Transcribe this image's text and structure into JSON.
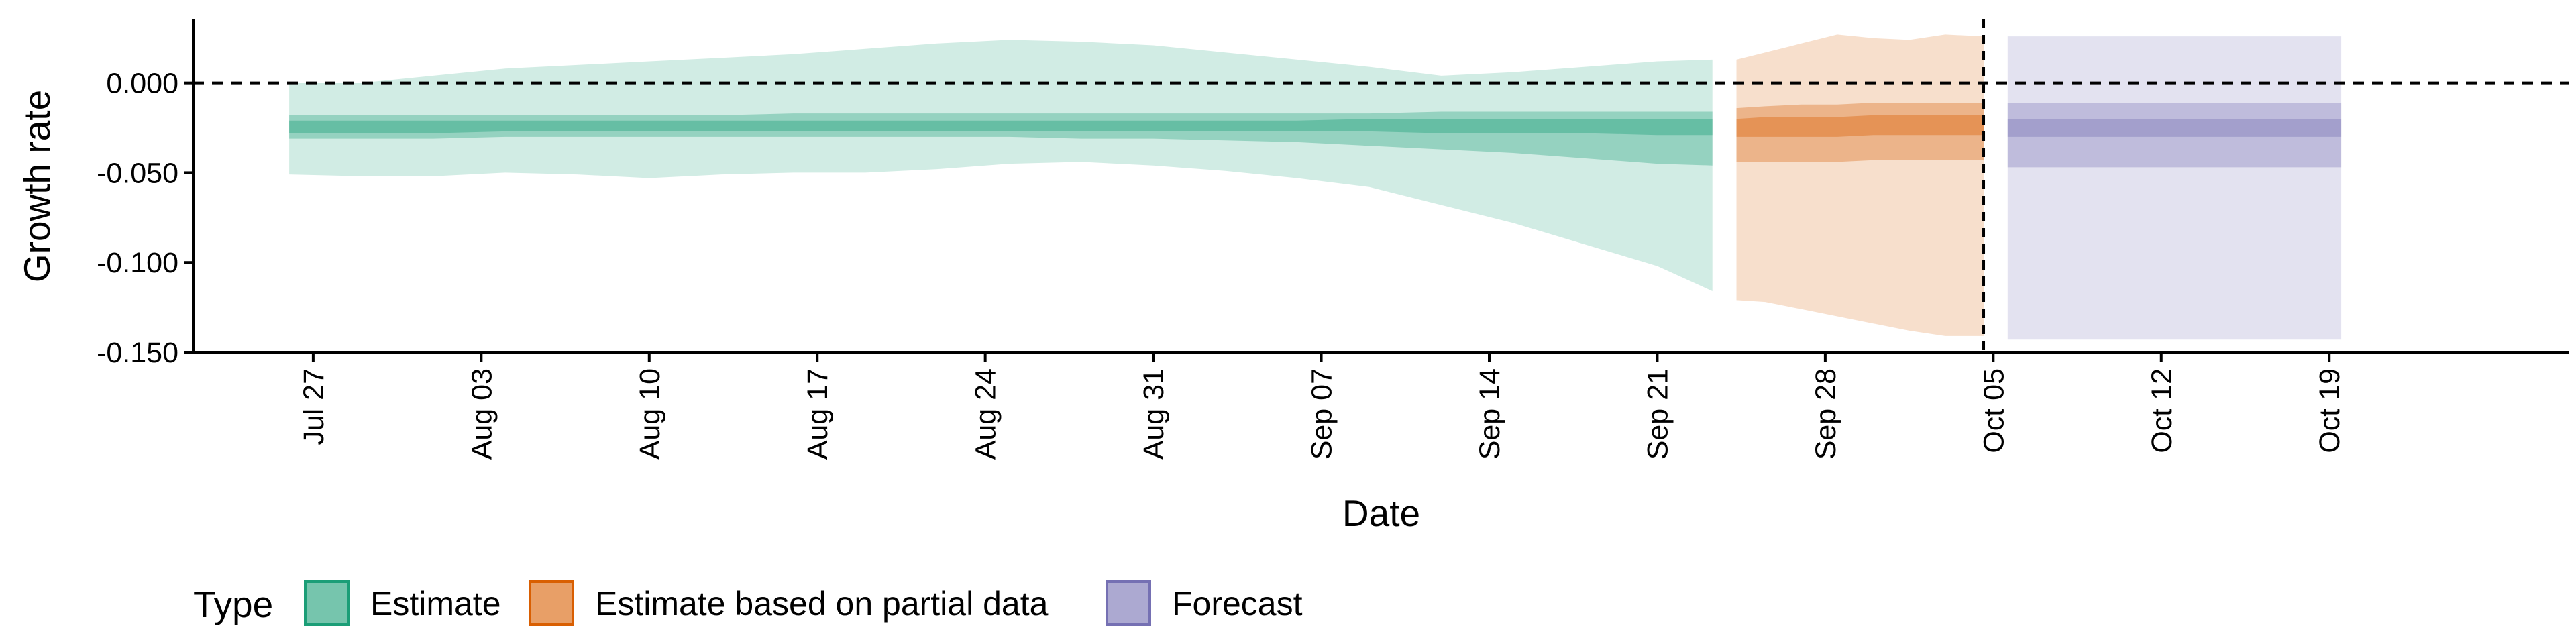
{
  "chart_data": {
    "type": "area",
    "xlabel": "Date",
    "ylabel": "Growth rate",
    "ylim": [
      -0.15,
      0.035
    ],
    "y_ticks": [
      "0.000",
      "-0.050",
      "-0.100",
      "-0.150"
    ],
    "y_tick_values": [
      0.0,
      -0.05,
      -0.1,
      -0.15
    ],
    "x_range_days": [
      -5,
      94
    ],
    "x_tick_labels": [
      "Jul 27",
      "Aug 03",
      "Aug 10",
      "Aug 17",
      "Aug 24",
      "Aug 31",
      "Sep 07",
      "Sep 14",
      "Sep 21",
      "Sep 28",
      "Oct 05",
      "Oct 12",
      "Oct 19"
    ],
    "x_tick_days": [
      0,
      7,
      14,
      21,
      28,
      35,
      42,
      49,
      56,
      63,
      70,
      77,
      84
    ],
    "hline_y": 0.0,
    "vline_day": 69.6,
    "legend": {
      "title": "Type",
      "position": "bottom-left",
      "entries": [
        "Estimate",
        "Estimate based on partial data",
        "Forecast"
      ]
    },
    "colors": {
      "Estimate": "#1b9e77",
      "Estimate based on partial data": "#d95f02",
      "Forecast": "#7570b3"
    },
    "series": [
      {
        "name": "Estimate",
        "day": [
          -1,
          2,
          5,
          8,
          11,
          14,
          17,
          20,
          23,
          26,
          29,
          32,
          35,
          38,
          41,
          44,
          47,
          50,
          53,
          56,
          58.3
        ],
        "median": [
          -0.025,
          -0.025,
          -0.025,
          -0.024,
          -0.024,
          -0.024,
          -0.024,
          -0.024,
          -0.024,
          -0.024,
          -0.024,
          -0.024,
          -0.024,
          -0.024,
          -0.024,
          -0.024,
          -0.024,
          -0.024,
          -0.024,
          -0.024,
          -0.024
        ],
        "lower_20": [
          -0.028,
          -0.028,
          -0.028,
          -0.027,
          -0.027,
          -0.027,
          -0.027,
          -0.027,
          -0.027,
          -0.027,
          -0.027,
          -0.027,
          -0.027,
          -0.027,
          -0.027,
          -0.027,
          -0.028,
          -0.028,
          -0.028,
          -0.029,
          -0.029
        ],
        "upper_20": [
          -0.021,
          -0.021,
          -0.021,
          -0.021,
          -0.021,
          -0.021,
          -0.021,
          -0.021,
          -0.021,
          -0.021,
          -0.021,
          -0.021,
          -0.021,
          -0.021,
          -0.021,
          -0.02,
          -0.02,
          -0.02,
          -0.02,
          -0.02,
          -0.02
        ],
        "lower_50": [
          -0.031,
          -0.031,
          -0.031,
          -0.03,
          -0.03,
          -0.03,
          -0.03,
          -0.03,
          -0.03,
          -0.03,
          -0.03,
          -0.031,
          -0.031,
          -0.032,
          -0.033,
          -0.035,
          -0.037,
          -0.039,
          -0.042,
          -0.045,
          -0.046
        ],
        "upper_50": [
          -0.018,
          -0.018,
          -0.018,
          -0.018,
          -0.018,
          -0.018,
          -0.018,
          -0.017,
          -0.017,
          -0.017,
          -0.017,
          -0.017,
          -0.017,
          -0.017,
          -0.017,
          -0.017,
          -0.016,
          -0.016,
          -0.016,
          -0.016,
          -0.016
        ],
        "lower_90": [
          -0.051,
          -0.052,
          -0.052,
          -0.05,
          -0.051,
          -0.053,
          -0.051,
          -0.05,
          -0.05,
          -0.048,
          -0.045,
          -0.044,
          -0.046,
          -0.049,
          -0.053,
          -0.058,
          -0.068,
          -0.078,
          -0.09,
          -0.102,
          -0.116
        ],
        "upper_90": [
          0.0,
          0.0,
          0.004,
          0.008,
          0.01,
          0.012,
          0.014,
          0.016,
          0.019,
          0.022,
          0.024,
          0.023,
          0.021,
          0.017,
          0.013,
          0.009,
          0.004,
          0.006,
          0.009,
          0.012,
          0.013
        ]
      },
      {
        "name": "Estimate based on partial data",
        "day": [
          59.3,
          60.5,
          62,
          63.5,
          65,
          66.5,
          68,
          69.6
        ],
        "median": [
          -0.025,
          -0.024,
          -0.024,
          -0.024,
          -0.023,
          -0.023,
          -0.023,
          -0.023
        ],
        "lower_20": [
          -0.03,
          -0.03,
          -0.03,
          -0.03,
          -0.029,
          -0.029,
          -0.029,
          -0.029
        ],
        "upper_20": [
          -0.02,
          -0.019,
          -0.019,
          -0.019,
          -0.018,
          -0.018,
          -0.018,
          -0.018
        ],
        "lower_50": [
          -0.044,
          -0.044,
          -0.044,
          -0.044,
          -0.043,
          -0.043,
          -0.043,
          -0.043
        ],
        "upper_50": [
          -0.014,
          -0.013,
          -0.012,
          -0.012,
          -0.011,
          -0.011,
          -0.011,
          -0.011
        ],
        "lower_90": [
          -0.121,
          -0.122,
          -0.126,
          -0.13,
          -0.134,
          -0.138,
          -0.141,
          -0.141
        ],
        "upper_90": [
          0.013,
          0.017,
          0.022,
          0.027,
          0.025,
          0.024,
          0.027,
          0.026
        ]
      },
      {
        "name": "Forecast",
        "day": [
          70.6,
          84.5
        ],
        "median": [
          -0.025,
          -0.025
        ],
        "lower_20": [
          -0.03,
          -0.03
        ],
        "upper_20": [
          -0.02,
          -0.02
        ],
        "lower_50": [
          -0.047,
          -0.047
        ],
        "upper_50": [
          -0.011,
          -0.011
        ],
        "lower_90": [
          -0.143,
          -0.143
        ],
        "upper_90": [
          0.026,
          0.026
        ]
      }
    ]
  }
}
